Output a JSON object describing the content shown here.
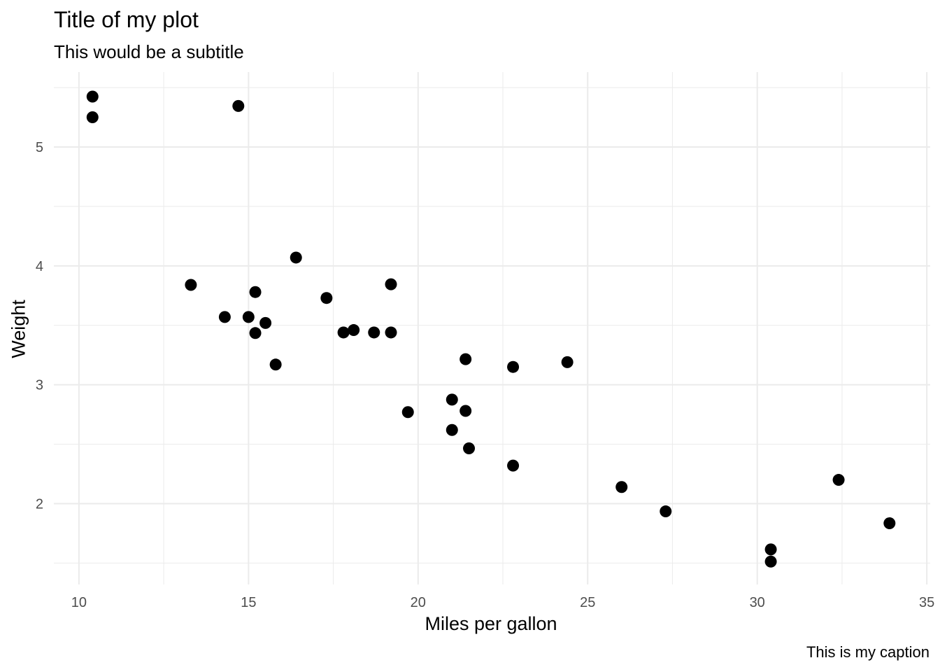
{
  "chart_data": {
    "type": "scatter",
    "title": "Title of my plot",
    "subtitle": "This would be a subtitle",
    "xlabel": "Miles per gallon",
    "ylabel": "Weight",
    "caption": "This is my caption",
    "xlim": [
      9.26,
      35.1
    ],
    "ylim": [
      1.32,
      5.63
    ],
    "xticks": [
      10,
      15,
      20,
      25,
      30,
      35
    ],
    "yticks": [
      2,
      3,
      4,
      5
    ],
    "grid": true,
    "point_color": "#000000",
    "grid_color": "#ebebeb",
    "points": [
      [
        21.0,
        2.62
      ],
      [
        21.0,
        2.875
      ],
      [
        22.8,
        2.32
      ],
      [
        21.4,
        3.215
      ],
      [
        18.7,
        3.44
      ],
      [
        18.1,
        3.46
      ],
      [
        14.3,
        3.57
      ],
      [
        24.4,
        3.19
      ],
      [
        22.8,
        3.15
      ],
      [
        19.2,
        3.44
      ],
      [
        17.8,
        3.44
      ],
      [
        16.4,
        4.07
      ],
      [
        17.3,
        3.73
      ],
      [
        15.2,
        3.78
      ],
      [
        10.4,
        5.25
      ],
      [
        10.4,
        5.424
      ],
      [
        14.7,
        5.345
      ],
      [
        32.4,
        2.2
      ],
      [
        30.4,
        1.615
      ],
      [
        33.9,
        1.835
      ],
      [
        21.5,
        2.465
      ],
      [
        15.5,
        3.52
      ],
      [
        15.2,
        3.435
      ],
      [
        13.3,
        3.84
      ],
      [
        19.2,
        3.845
      ],
      [
        27.3,
        1.935
      ],
      [
        26.0,
        2.14
      ],
      [
        30.4,
        1.513
      ],
      [
        15.8,
        3.17
      ],
      [
        19.7,
        2.77
      ],
      [
        15.0,
        3.57
      ],
      [
        21.4,
        2.78
      ]
    ]
  }
}
